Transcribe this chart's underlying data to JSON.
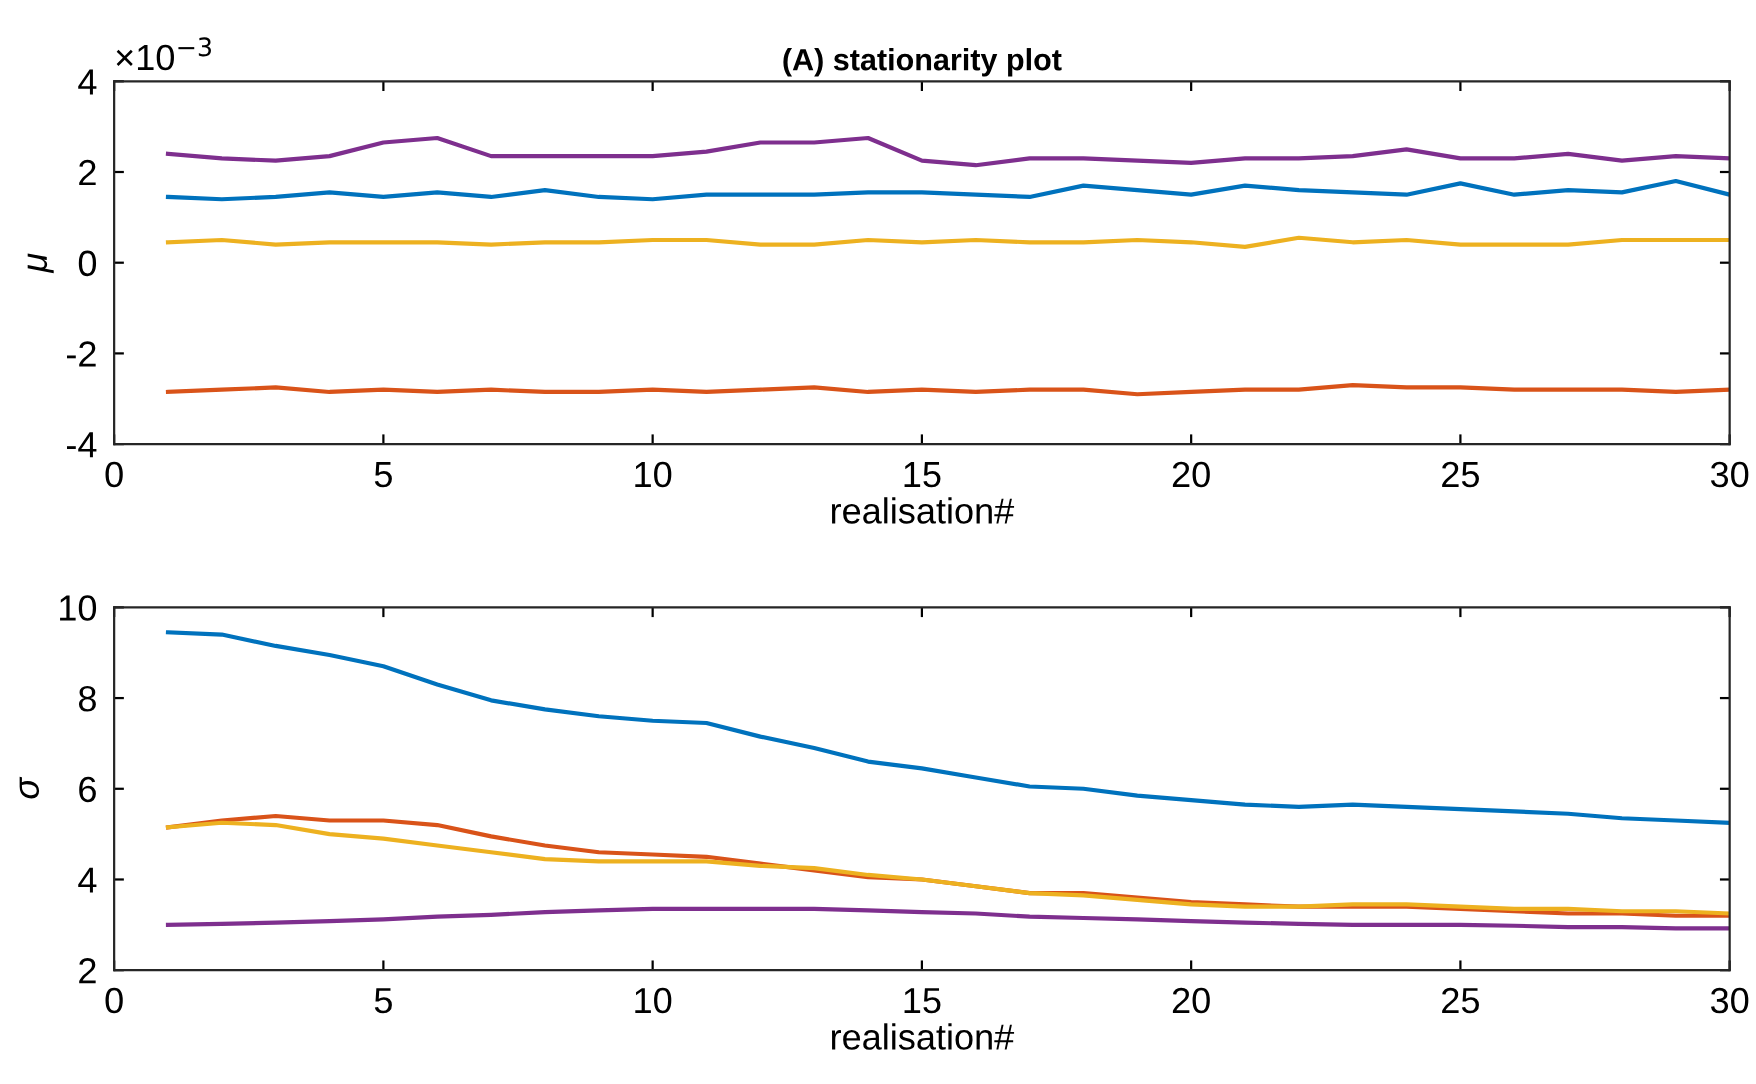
{
  "chart_data": [
    {
      "type": "line",
      "title": "(A) stationarity plot",
      "xlabel": "realisation#",
      "ylabel": "μ",
      "annotations": [
        "×10$^{−3}$"
      ],
      "x": [
        1,
        2,
        3,
        4,
        5,
        6,
        7,
        8,
        9,
        10,
        11,
        12,
        13,
        14,
        15,
        16,
        17,
        18,
        19,
        20,
        21,
        22,
        23,
        24,
        25,
        26,
        27,
        28,
        29,
        30
      ],
      "xlim": [
        0,
        30
      ],
      "xticks": [
        0,
        5,
        10,
        15,
        20,
        25,
        30
      ],
      "ylim": [
        -4,
        4
      ],
      "yticks": [
        -4,
        -2,
        0,
        2,
        4
      ],
      "grid": false,
      "series": [
        {
          "color": "#0072bd",
          "values": [
            1.45,
            1.4,
            1.45,
            1.55,
            1.45,
            1.55,
            1.45,
            1.6,
            1.45,
            1.4,
            1.5,
            1.5,
            1.5,
            1.55,
            1.55,
            1.5,
            1.45,
            1.7,
            1.6,
            1.5,
            1.7,
            1.6,
            1.55,
            1.5,
            1.75,
            1.5,
            1.6,
            1.55,
            1.8,
            1.5
          ]
        },
        {
          "color": "#d95319",
          "values": [
            -2.85,
            -2.8,
            -2.75,
            -2.85,
            -2.8,
            -2.85,
            -2.8,
            -2.85,
            -2.85,
            -2.8,
            -2.85,
            -2.8,
            -2.75,
            -2.85,
            -2.8,
            -2.85,
            -2.8,
            -2.8,
            -2.9,
            -2.85,
            -2.8,
            -2.8,
            -2.7,
            -2.75,
            -2.75,
            -2.8,
            -2.8,
            -2.8,
            -2.85,
            -2.8
          ]
        },
        {
          "color": "#edb120",
          "values": [
            0.45,
            0.5,
            0.4,
            0.45,
            0.45,
            0.45,
            0.4,
            0.45,
            0.45,
            0.5,
            0.5,
            0.4,
            0.4,
            0.5,
            0.45,
            0.5,
            0.45,
            0.45,
            0.5,
            0.45,
            0.35,
            0.55,
            0.45,
            0.5,
            0.4,
            0.4,
            0.4,
            0.5,
            0.5,
            0.5
          ]
        },
        {
          "color": "#7e2f8e",
          "values": [
            2.4,
            2.3,
            2.25,
            2.35,
            2.65,
            2.75,
            2.35,
            2.35,
            2.35,
            2.35,
            2.45,
            2.65,
            2.65,
            2.75,
            2.25,
            2.15,
            2.3,
            2.3,
            2.25,
            2.2,
            2.3,
            2.3,
            2.35,
            2.5,
            2.3,
            2.3,
            2.4,
            2.25,
            2.35,
            2.3
          ]
        }
      ]
    },
    {
      "type": "line",
      "xlabel": "realisation#",
      "ylabel": "σ",
      "x": [
        1,
        2,
        3,
        4,
        5,
        6,
        7,
        8,
        9,
        10,
        11,
        12,
        13,
        14,
        15,
        16,
        17,
        18,
        19,
        20,
        21,
        22,
        23,
        24,
        25,
        26,
        27,
        28,
        29,
        30
      ],
      "xlim": [
        0,
        30
      ],
      "xticks": [
        0,
        5,
        10,
        15,
        20,
        25,
        30
      ],
      "ylim": [
        2,
        10
      ],
      "yticks": [
        2,
        4,
        6,
        8,
        10
      ],
      "grid": false,
      "series": [
        {
          "color": "#0072bd",
          "values": [
            9.45,
            9.4,
            9.15,
            8.95,
            8.7,
            8.3,
            7.95,
            7.75,
            7.6,
            7.5,
            7.45,
            7.15,
            6.9,
            6.6,
            6.45,
            6.25,
            6.05,
            6.0,
            5.85,
            5.75,
            5.65,
            5.6,
            5.65,
            5.6,
            5.55,
            5.5,
            5.45,
            5.35,
            5.3,
            5.25
          ]
        },
        {
          "color": "#d95319",
          "values": [
            5.15,
            5.3,
            5.4,
            5.3,
            5.3,
            5.2,
            4.95,
            4.75,
            4.6,
            4.55,
            4.5,
            4.35,
            4.2,
            4.05,
            4.0,
            3.85,
            3.7,
            3.7,
            3.6,
            3.5,
            3.45,
            3.4,
            3.4,
            3.4,
            3.35,
            3.3,
            3.25,
            3.25,
            3.2,
            3.2
          ]
        },
        {
          "color": "#edb120",
          "values": [
            5.15,
            5.25,
            5.2,
            5.0,
            4.9,
            4.75,
            4.6,
            4.45,
            4.4,
            4.4,
            4.4,
            4.3,
            4.25,
            4.1,
            4.0,
            3.85,
            3.7,
            3.65,
            3.55,
            3.45,
            3.4,
            3.4,
            3.45,
            3.45,
            3.4,
            3.35,
            3.35,
            3.3,
            3.3,
            3.25
          ]
        },
        {
          "color": "#7e2f8e",
          "values": [
            3.0,
            3.02,
            3.05,
            3.08,
            3.12,
            3.18,
            3.22,
            3.28,
            3.32,
            3.35,
            3.35,
            3.35,
            3.35,
            3.32,
            3.28,
            3.25,
            3.18,
            3.15,
            3.12,
            3.08,
            3.05,
            3.02,
            3.0,
            3.0,
            3.0,
            2.98,
            2.95,
            2.95,
            2.92,
            2.92
          ]
        }
      ]
    }
  ]
}
